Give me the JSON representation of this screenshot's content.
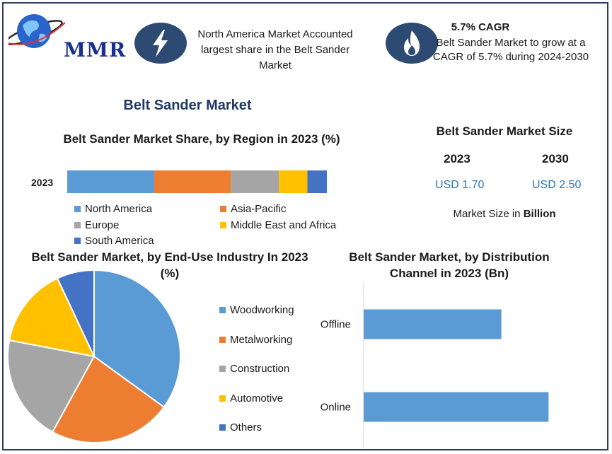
{
  "branding": {
    "logo_text": "MMR",
    "colors": {
      "globe": "#2a63c9",
      "logo_text": "#1a2f8f",
      "badge": "#2c4a72"
    }
  },
  "highlights": [
    {
      "icon": "lightning-icon",
      "text": "North America Market Accounted largest share in the Belt Sander Market"
    },
    {
      "icon": "flame-icon",
      "title": "5.7% CAGR",
      "text": "Belt Sander Market to grow at a CAGR of 5.7% during 2024-2030"
    }
  ],
  "main_title": "Belt Sander Market",
  "market_size": {
    "title": "Belt Sander Market Size",
    "years": [
      {
        "year": "2023",
        "value": "USD 1.70"
      },
      {
        "year": "2030",
        "value": "USD 2.50"
      }
    ],
    "unit_prefix": "Market Size in ",
    "unit_bold": "Billion"
  },
  "chart_data": [
    {
      "type": "bar",
      "orientation": "horizontal-stacked",
      "title": "Belt Sander Market Share, by Region in 2023 (%)",
      "categories": [
        "2023"
      ],
      "series": [
        {
          "name": "North America",
          "values": [
            33.5
          ],
          "color": "#5b9bd5"
        },
        {
          "name": "Asia-Pacific",
          "values": [
            29.5
          ],
          "color": "#ed7d31"
        },
        {
          "name": "Europe",
          "values": [
            18.5
          ],
          "color": "#a5a5a5"
        },
        {
          "name": "Middle East and Africa",
          "values": [
            11
          ],
          "color": "#ffc000"
        },
        {
          "name": "South America",
          "values": [
            7.5
          ],
          "color": "#4472c4"
        }
      ],
      "legend": "bottom"
    },
    {
      "type": "pie",
      "title": "Belt Sander Market, by End-Use Industry In 2023 (%)",
      "labels": [
        "Woodworking",
        "Metalworking",
        "Construction",
        "Automotive",
        "Others"
      ],
      "values": [
        35,
        23,
        20,
        15,
        7
      ],
      "colors": [
        "#5b9bd5",
        "#ed7d31",
        "#a5a5a5",
        "#ffc000",
        "#4472c4"
      ],
      "legend": "right"
    },
    {
      "type": "bar",
      "orientation": "horizontal",
      "title": "Belt Sander Market, by Distribution Channel in 2023 (Bn)",
      "categories": [
        "Offline",
        "Online"
      ],
      "values": [
        0.73,
        0.98
      ],
      "xlim": [
        0,
        1.2
      ],
      "color": "#5b9bd5",
      "grid": false
    }
  ]
}
